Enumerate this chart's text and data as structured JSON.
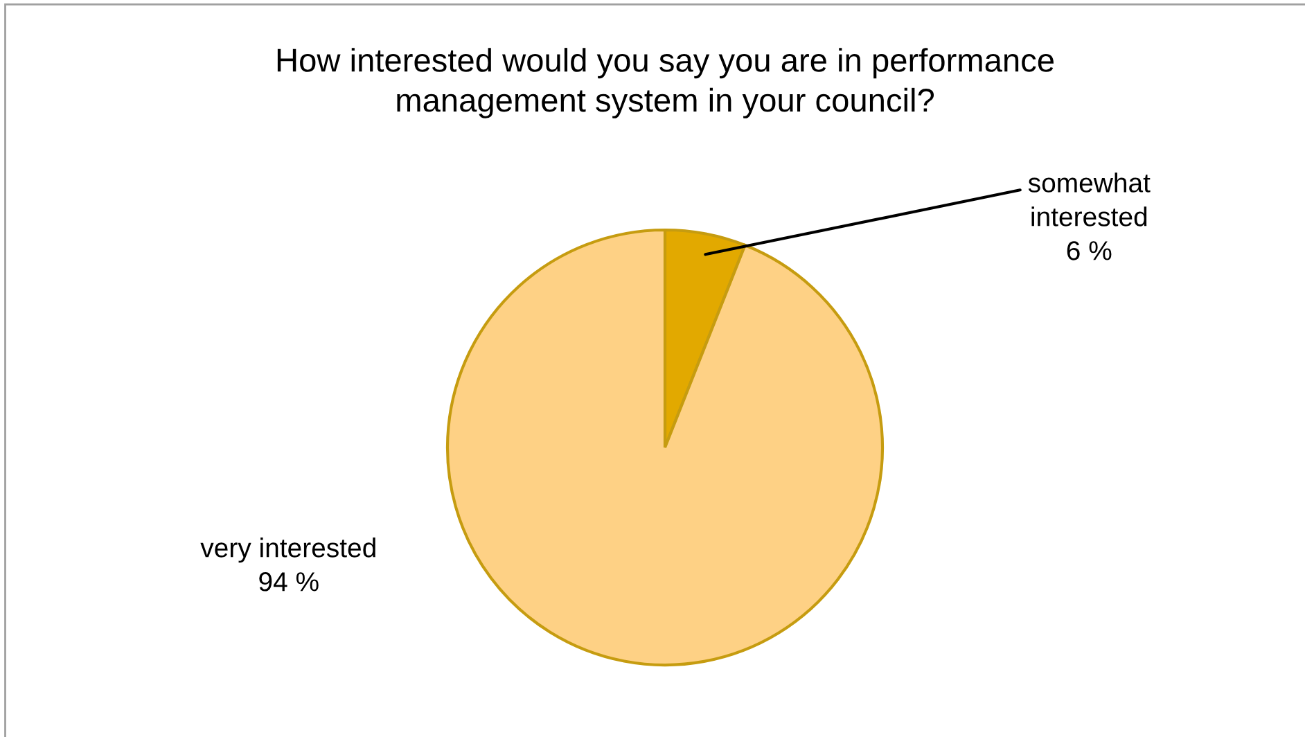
{
  "chart_data": {
    "type": "pie",
    "title": "How interested would you say you are in performance\nmanagement system in your council?",
    "categories": [
      "somewhat\ninterested",
      "very interested"
    ],
    "values": [
      6,
      94
    ],
    "value_labels": [
      "6 %",
      "94 %"
    ],
    "colors": [
      "#e2a900",
      "#fed185"
    ],
    "legend": false
  }
}
